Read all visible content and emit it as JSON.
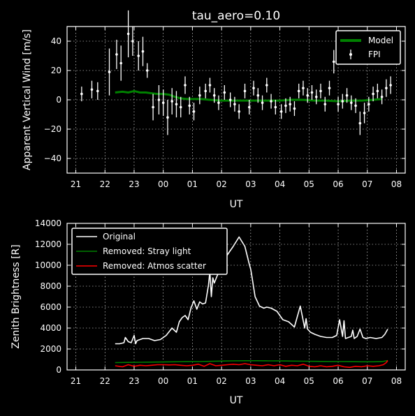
{
  "chart_data": [
    {
      "type": "scatter",
      "title": "tau_aero=0.10",
      "xlabel": "UT",
      "ylabel": "Apparent Vertical Wind [m/s]",
      "xlim": [
        20.7,
        32.3
      ],
      "ylim": [
        -50,
        50
      ],
      "xticks": [
        21,
        22,
        23,
        24,
        25,
        26,
        27,
        28,
        29,
        30,
        31,
        32
      ],
      "xtick_labels": [
        "21",
        "22",
        "23",
        "00",
        "01",
        "02",
        "03",
        "04",
        "05",
        "06",
        "07",
        "08"
      ],
      "yticks": [
        -40,
        -20,
        0,
        20,
        40
      ],
      "ytick_labels": [
        "−40",
        "−20",
        "0",
        "20",
        "40"
      ],
      "grid": true,
      "legend_position": "top-right",
      "series": [
        {
          "name": "Model",
          "kind": "line",
          "color": "#008000",
          "x": [
            22.35,
            22.6,
            22.8,
            23.0,
            23.2,
            23.4,
            23.6,
            23.8,
            24.0,
            24.2,
            24.4,
            24.6,
            24.8,
            25.0,
            25.3,
            25.6,
            26.0,
            26.4,
            26.8,
            27.2,
            27.6,
            28.0,
            28.4,
            28.8,
            29.2,
            29.6,
            30.0,
            30.4,
            30.8,
            31.2,
            31.5
          ],
          "y": [
            5,
            5.5,
            5,
            6,
            5,
            5,
            4.5,
            4,
            4,
            3.5,
            2,
            1,
            0.5,
            0.5,
            0.5,
            0,
            -0.5,
            -0.5,
            -0.5,
            -0.5,
            -0.5,
            -0.5,
            0,
            0,
            -0.5,
            -0.5,
            -1,
            -0.5,
            -0.5,
            0,
            0.5
          ]
        },
        {
          "name": "FPI",
          "kind": "errorbar",
          "color": "#ffffff",
          "x": [
            21.2,
            21.55,
            21.75,
            22.15,
            22.4,
            22.55,
            22.8,
            22.95,
            23.15,
            23.3,
            23.45,
            23.65,
            23.85,
            24.0,
            24.15,
            24.3,
            24.45,
            24.6,
            24.75,
            24.9,
            25.05,
            25.25,
            25.45,
            25.6,
            25.75,
            25.9,
            26.1,
            26.3,
            26.45,
            26.6,
            26.8,
            26.95,
            27.1,
            27.25,
            27.4,
            27.55,
            27.7,
            27.85,
            28.05,
            28.2,
            28.35,
            28.5,
            28.65,
            28.8,
            28.95,
            29.1,
            29.25,
            29.4,
            29.55,
            29.7,
            29.85,
            30.0,
            30.15,
            30.3,
            30.45,
            30.6,
            30.75,
            30.9,
            31.05,
            31.2,
            31.35,
            31.5,
            31.65,
            31.8
          ],
          "y": [
            4,
            7,
            6,
            19,
            31,
            25,
            45,
            40,
            30,
            33,
            20,
            -5,
            0,
            -2,
            -12,
            -1,
            -3,
            -5,
            10,
            -4,
            -8,
            3,
            6,
            10,
            3,
            -2,
            5,
            0,
            -3,
            -8,
            6,
            -5,
            8,
            3,
            -2,
            10,
            -1,
            -5,
            -8,
            -4,
            -3,
            -6,
            6,
            8,
            3,
            5,
            2,
            6,
            -3,
            8,
            26,
            -3,
            -1,
            3,
            -2,
            -4,
            -16,
            -9,
            -3,
            4,
            6,
            2,
            8,
            10
          ],
          "err": [
            5,
            6,
            6,
            16,
            10,
            12,
            16,
            10,
            10,
            10,
            5,
            9,
            10,
            9,
            12,
            9,
            9,
            7,
            6,
            6,
            6,
            6,
            5,
            5,
            5,
            5,
            5,
            5,
            5,
            5,
            5,
            5,
            5,
            5,
            5,
            5,
            5,
            5,
            5,
            5,
            5,
            5,
            5,
            5,
            5,
            5,
            5,
            5,
            5,
            5,
            8,
            5,
            5,
            5,
            5,
            5,
            8,
            7,
            5,
            5,
            5,
            5,
            6,
            6
          ]
        }
      ]
    },
    {
      "type": "line",
      "title": "",
      "xlabel": "UT",
      "ylabel": "Zenith Brightness [R]",
      "xlim": [
        20.7,
        32.3
      ],
      "ylim": [
        0,
        14000
      ],
      "xticks": [
        21,
        22,
        23,
        24,
        25,
        26,
        27,
        28,
        29,
        30,
        31,
        32
      ],
      "xtick_labels": [
        "21",
        "22",
        "23",
        "00",
        "01",
        "02",
        "03",
        "04",
        "05",
        "06",
        "07",
        "08"
      ],
      "yticks": [
        0,
        2000,
        4000,
        6000,
        8000,
        10000,
        12000,
        14000
      ],
      "ytick_labels": [
        "0",
        "2000",
        "4000",
        "6000",
        "8000",
        "10000",
        "12000",
        "14000"
      ],
      "grid": true,
      "legend_position": "top-left",
      "series": [
        {
          "name": "Original",
          "color": "#ffffff",
          "x": [
            22.35,
            22.5,
            22.65,
            22.7,
            22.8,
            22.9,
            23.0,
            23.05,
            23.1,
            23.3,
            23.5,
            23.7,
            23.9,
            24.1,
            24.3,
            24.45,
            24.55,
            24.65,
            24.75,
            24.85,
            24.95,
            25.05,
            25.15,
            25.25,
            25.35,
            25.45,
            25.55,
            25.6,
            25.65,
            25.7,
            25.75,
            25.85,
            25.95,
            26.05,
            26.2,
            26.4,
            26.6,
            26.8,
            26.95,
            27.0,
            27.05,
            27.15,
            27.3,
            27.45,
            27.55,
            27.7,
            27.9,
            28.1,
            28.3,
            28.5,
            28.7,
            28.85,
            28.9,
            28.95,
            29.05,
            29.2,
            29.4,
            29.6,
            29.8,
            29.95,
            30.05,
            30.15,
            30.2,
            30.25,
            30.35,
            30.45,
            30.5,
            30.55,
            30.65,
            30.75,
            30.85,
            30.95,
            31.1,
            31.3,
            31.5,
            31.6,
            31.7
          ],
          "y": [
            2500,
            2500,
            2600,
            3100,
            2700,
            2600,
            3300,
            2500,
            2800,
            3000,
            3000,
            2800,
            2900,
            3300,
            4000,
            3600,
            4600,
            5000,
            5200,
            4800,
            5900,
            6600,
            5800,
            6500,
            6300,
            6400,
            8100,
            9400,
            7000,
            8800,
            8300,
            9000,
            9600,
            10200,
            11000,
            11800,
            12700,
            11800,
            10100,
            9600,
            8800,
            7000,
            6100,
            5900,
            6000,
            5900,
            5600,
            4800,
            4600,
            4100,
            6100,
            4000,
            4900,
            3900,
            3600,
            3400,
            3200,
            3100,
            3100,
            3300,
            4800,
            3200,
            4700,
            3000,
            3100,
            3200,
            3800,
            3000,
            3200,
            3900,
            3100,
            3000,
            3100,
            3000,
            3100,
            3400,
            3900
          ]
        },
        {
          "name": "Removed: Stray light",
          "color": "#008000",
          "x": [
            22.35,
            22.8,
            23.2,
            23.6,
            24.0,
            24.4,
            24.8,
            25.2,
            25.6,
            26.0,
            26.4,
            26.8,
            27.2,
            27.6,
            28.0,
            28.4,
            28.8,
            29.2,
            29.6,
            30.0,
            30.4,
            30.8,
            31.2,
            31.5,
            31.7
          ],
          "y": [
            700,
            720,
            730,
            750,
            760,
            780,
            790,
            800,
            820,
            850,
            870,
            880,
            880,
            870,
            860,
            850,
            830,
            820,
            810,
            800,
            790,
            780,
            780,
            790,
            900
          ]
        },
        {
          "name": "Removed: Atmos scatter",
          "color": "#ff0000",
          "x": [
            22.35,
            22.6,
            22.8,
            23.0,
            23.2,
            23.4,
            23.6,
            23.8,
            24.0,
            24.2,
            24.4,
            24.6,
            24.8,
            25.0,
            25.2,
            25.4,
            25.6,
            25.8,
            26.0,
            26.2,
            26.4,
            26.6,
            26.8,
            27.0,
            27.2,
            27.4,
            27.6,
            27.8,
            28.0,
            28.2,
            28.4,
            28.6,
            28.8,
            29.0,
            29.2,
            29.4,
            29.6,
            29.8,
            30.0,
            30.2,
            30.4,
            30.6,
            30.8,
            31.0,
            31.2,
            31.4,
            31.55,
            31.65,
            31.7
          ],
          "y": [
            400,
            300,
            500,
            350,
            450,
            400,
            450,
            500,
            500,
            480,
            500,
            450,
            400,
            450,
            550,
            350,
            600,
            400,
            450,
            500,
            550,
            500,
            600,
            500,
            450,
            400,
            500,
            400,
            500,
            350,
            450,
            400,
            550,
            350,
            300,
            400,
            300,
            350,
            450,
            300,
            250,
            350,
            300,
            400,
            350,
            400,
            500,
            700,
            900
          ]
        }
      ]
    }
  ]
}
